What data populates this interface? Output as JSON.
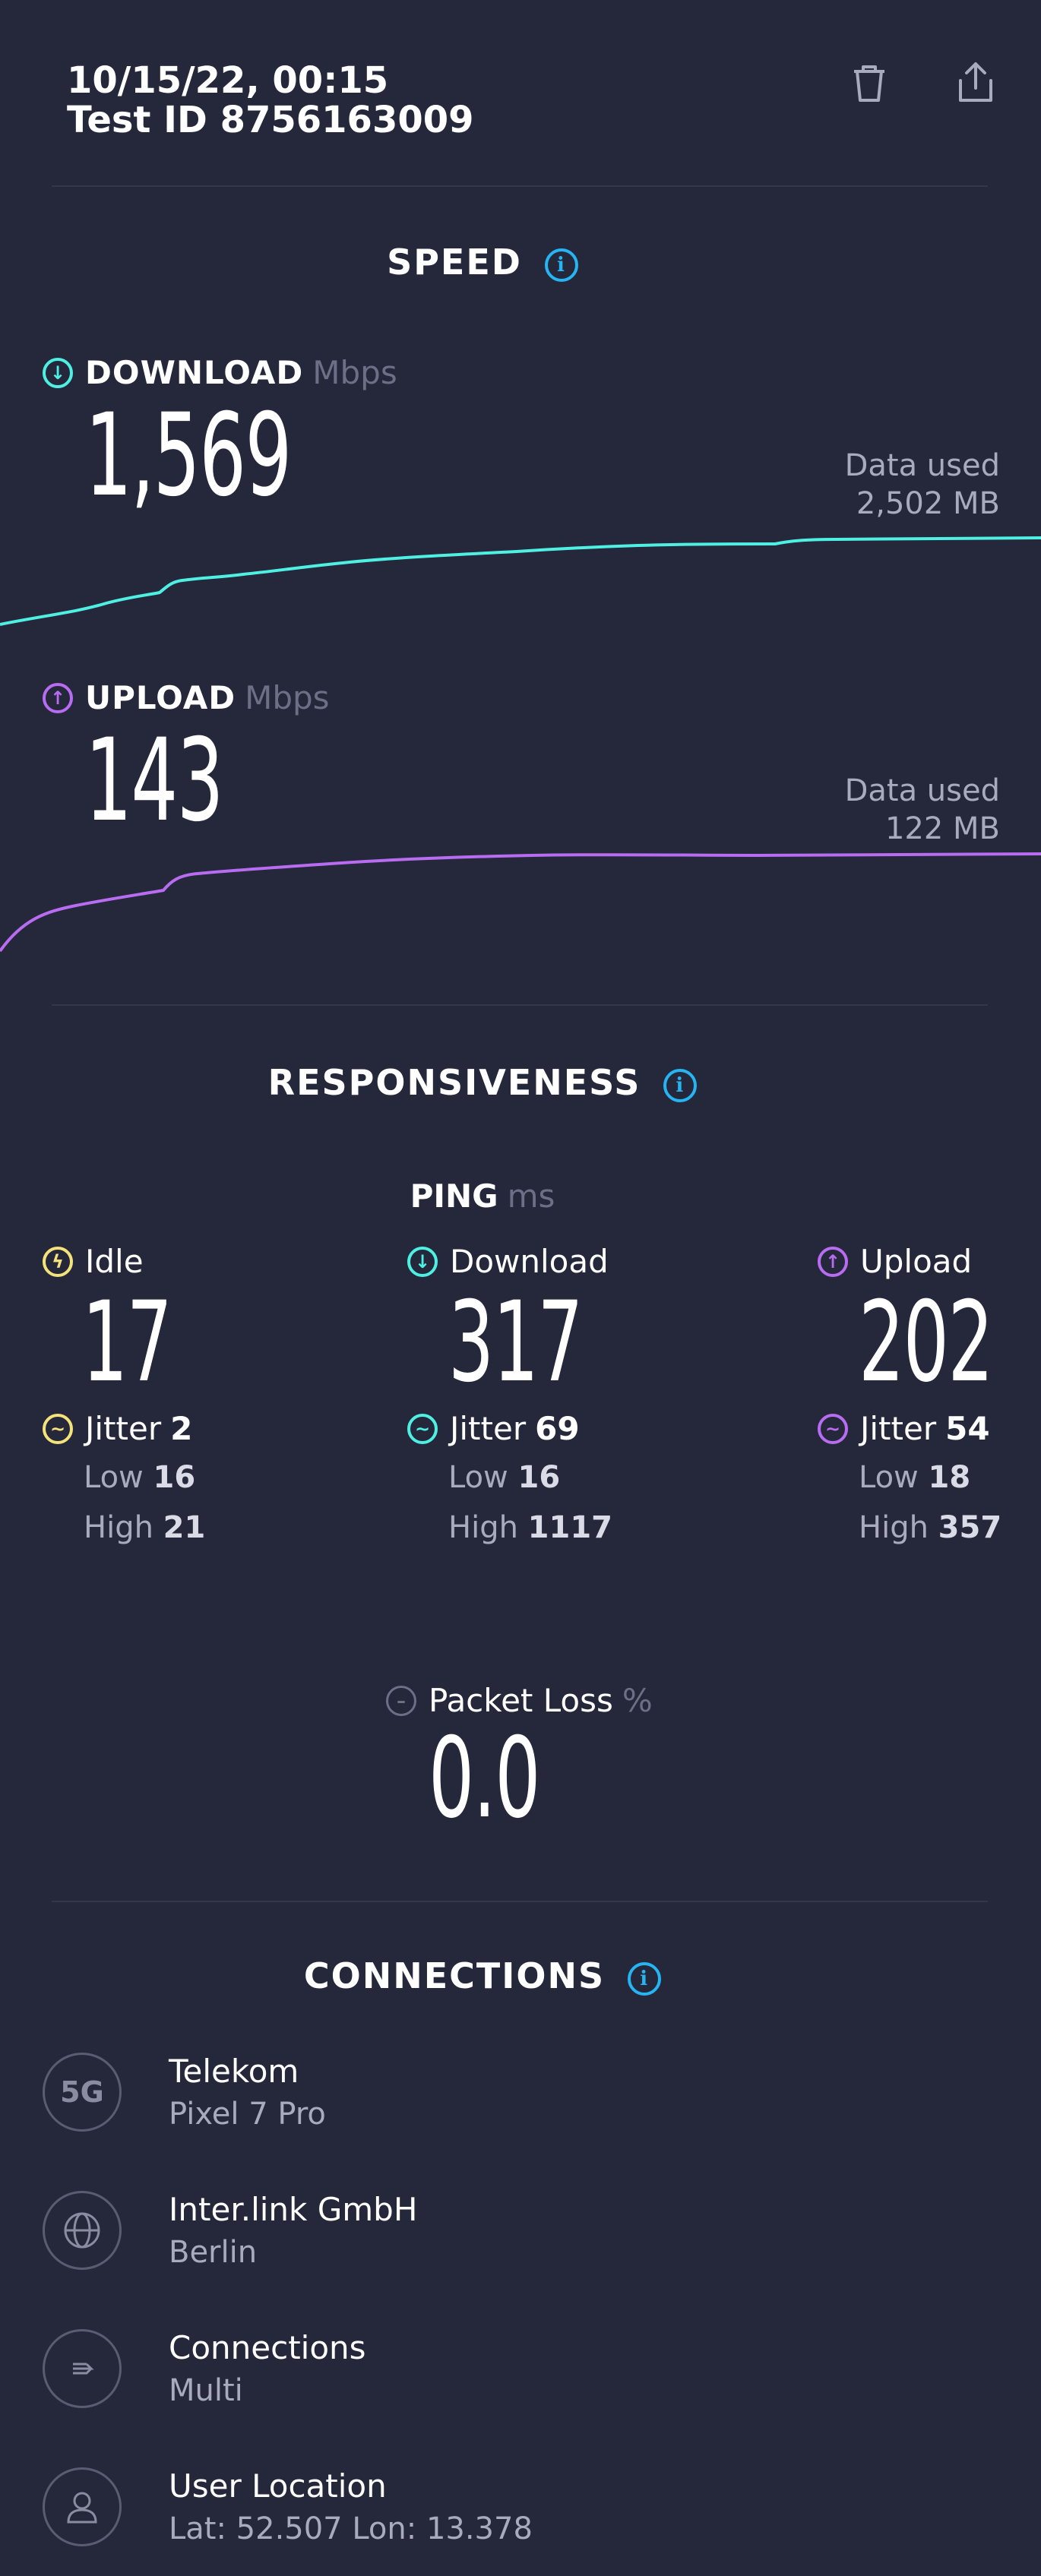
{
  "header": {
    "datetime": "10/15/22, 00:15",
    "test_id": "Test ID 8756163009"
  },
  "speed": {
    "title": "SPEED",
    "download": {
      "label": "DOWNLOAD",
      "unit": "Mbps",
      "value": "1,569",
      "data_used_label": "Data used",
      "data_used_value": "2,502 MB"
    },
    "upload": {
      "label": "UPLOAD",
      "unit": "Mbps",
      "value": "143",
      "data_used_label": "Data used",
      "data_used_value": "122 MB"
    }
  },
  "responsiveness": {
    "title": "RESPONSIVENESS",
    "ping_label": "PING",
    "ping_unit": "ms",
    "idle": {
      "label": "Idle",
      "value": "17",
      "jitter_label": "Jitter",
      "jitter": "2",
      "low_label": "Low",
      "low": "16",
      "high_label": "High",
      "high": "21"
    },
    "download": {
      "label": "Download",
      "value": "317",
      "jitter_label": "Jitter",
      "jitter": "69",
      "low_label": "Low",
      "low": "16",
      "high_label": "High",
      "high": "1117"
    },
    "upload": {
      "label": "Upload",
      "value": "202",
      "jitter_label": "Jitter",
      "jitter": "54",
      "low_label": "Low",
      "low": "18",
      "high_label": "High",
      "high": "357"
    },
    "packet_loss": {
      "label": "Packet Loss",
      "unit": "%",
      "value": "0.0"
    }
  },
  "connections": {
    "title": "CONNECTIONS",
    "items": [
      {
        "icon": "5g-icon",
        "icon_text": "5G",
        "title": "Telekom",
        "subtitle": "Pixel 7 Pro"
      },
      {
        "icon": "globe-icon",
        "title": "Inter.link GmbH",
        "subtitle": "Berlin"
      },
      {
        "icon": "connections-icon",
        "title": "Connections",
        "subtitle": "Multi"
      },
      {
        "icon": "user-icon",
        "title": "User Location",
        "subtitle": "Lat: 52.507 Lon: 13.378"
      }
    ]
  },
  "colors": {
    "background": "#25273a",
    "download": "#4ff0e4",
    "upload": "#b86cf2",
    "idle": "#f4e37a",
    "info": "#26b4f2"
  }
}
